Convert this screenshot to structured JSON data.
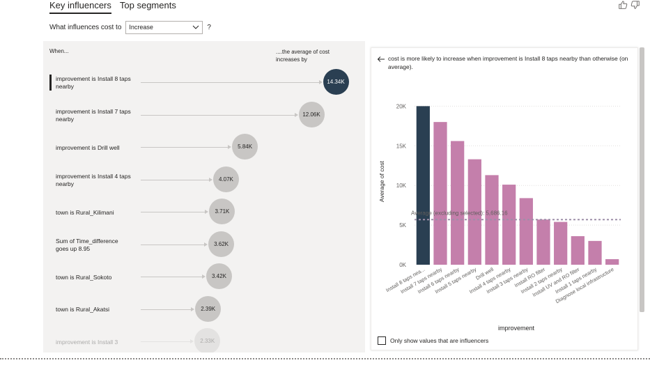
{
  "tabs": [
    {
      "label": "Key influencers",
      "active": true
    },
    {
      "label": "Top segments",
      "active": false
    }
  ],
  "question": {
    "label": "What influences cost to",
    "dropdown_value": "Increase",
    "help": "?"
  },
  "influencers": {
    "col_when": "When...",
    "col_avg": "....the average of cost increases by",
    "rows": [
      {
        "label": "improvement is Install 8 taps nearby",
        "value": "14.34K",
        "selected": true
      },
      {
        "label": "improvement is Install 7 taps nearby",
        "value": "12.06K"
      },
      {
        "label": "improvement is Drill well",
        "value": "5.84K"
      },
      {
        "label": "improvement is Install 4 taps nearby",
        "value": "4.07K"
      },
      {
        "label": "town is Rural_Kilimani",
        "value": "3.71K"
      },
      {
        "label": "Sum of Time_difference goes up 8.95",
        "value": "3.62K"
      },
      {
        "label": "town is Rural_Sokoto",
        "value": "3.42K"
      },
      {
        "label": "town is Rural_Akatsi",
        "value": "2.39K"
      },
      {
        "label": "improvement is Install 3",
        "value": "2.33K",
        "faded": true
      }
    ]
  },
  "detail": {
    "explanation": "cost is more likely to increase when improvement is Install 8 taps nearby than otherwise (on average).",
    "checkbox_label": "Only show values that are influencers"
  },
  "colors": {
    "selected_bar": "#2a3f52",
    "bar": "#c47fab",
    "bubble": "#c8c6c4",
    "average_line": "#9e8fa9"
  },
  "chart_data": {
    "type": "bar",
    "xlabel": "improvement",
    "ylabel": "Average of cost",
    "ylim": [
      0,
      21000
    ],
    "yticks": [
      0,
      5000,
      10000,
      15000,
      20000
    ],
    "ytick_labels": [
      "0K",
      "5K",
      "10K",
      "15K",
      "20K"
    ],
    "categories": [
      "Install 8 taps nea...",
      "Install 7 taps nearby",
      "Install 6 taps nearby",
      "Install 5 taps nearby",
      "Drill well",
      "Install 4 taps nearby",
      "Install 3 taps nearby",
      "Install RO filter",
      "Install 2 taps nearby",
      "Install UV and RO filter",
      "Install 1 taps nearby",
      "Diagnose local infrastructure"
    ],
    "values": [
      20000,
      18000,
      15600,
      13300,
      11300,
      10100,
      8400,
      5700,
      5400,
      3600,
      3000,
      700
    ],
    "selected_index": 0,
    "reference_line": {
      "value": 5686.16,
      "label": "Average (excluding selected): 5,686.16"
    },
    "grid": true
  }
}
